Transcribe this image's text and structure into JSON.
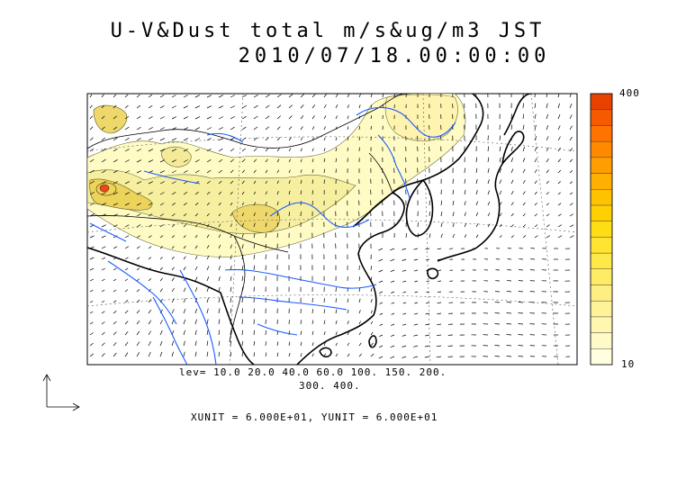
{
  "title": {
    "line1": "U-V&Dust total m/s&ug/m3 JST",
    "line2": "2010/07/18.00:00:00"
  },
  "colorbar": {
    "max_label": "400",
    "min_label": "10",
    "colors": [
      "#ffffe0",
      "#fffbc8",
      "#fff6b0",
      "#fff39a",
      "#ffef82",
      "#ffec66",
      "#ffe84a",
      "#ffe431",
      "#ffdd14",
      "#ffd000",
      "#ffc200",
      "#ffb000",
      "#ff9e00",
      "#ff8a00",
      "#ff7300",
      "#f55a00",
      "#e94200"
    ]
  },
  "contour_levels": {
    "line1": "lev= 10.0 20.0 40.0 60.0 100. 150. 200.",
    "line2": "300. 400."
  },
  "units": {
    "text": "XUNIT = 6.000E+01, YUNIT = 6.000E+01"
  },
  "colors": {
    "coast": "#000000",
    "rivers": "#1a5cff",
    "dust_light": "#fffbc4",
    "dust_mid": "#f5ec9a",
    "dust_high": "#e8c040",
    "dust_peak": "#e84a1a"
  }
}
